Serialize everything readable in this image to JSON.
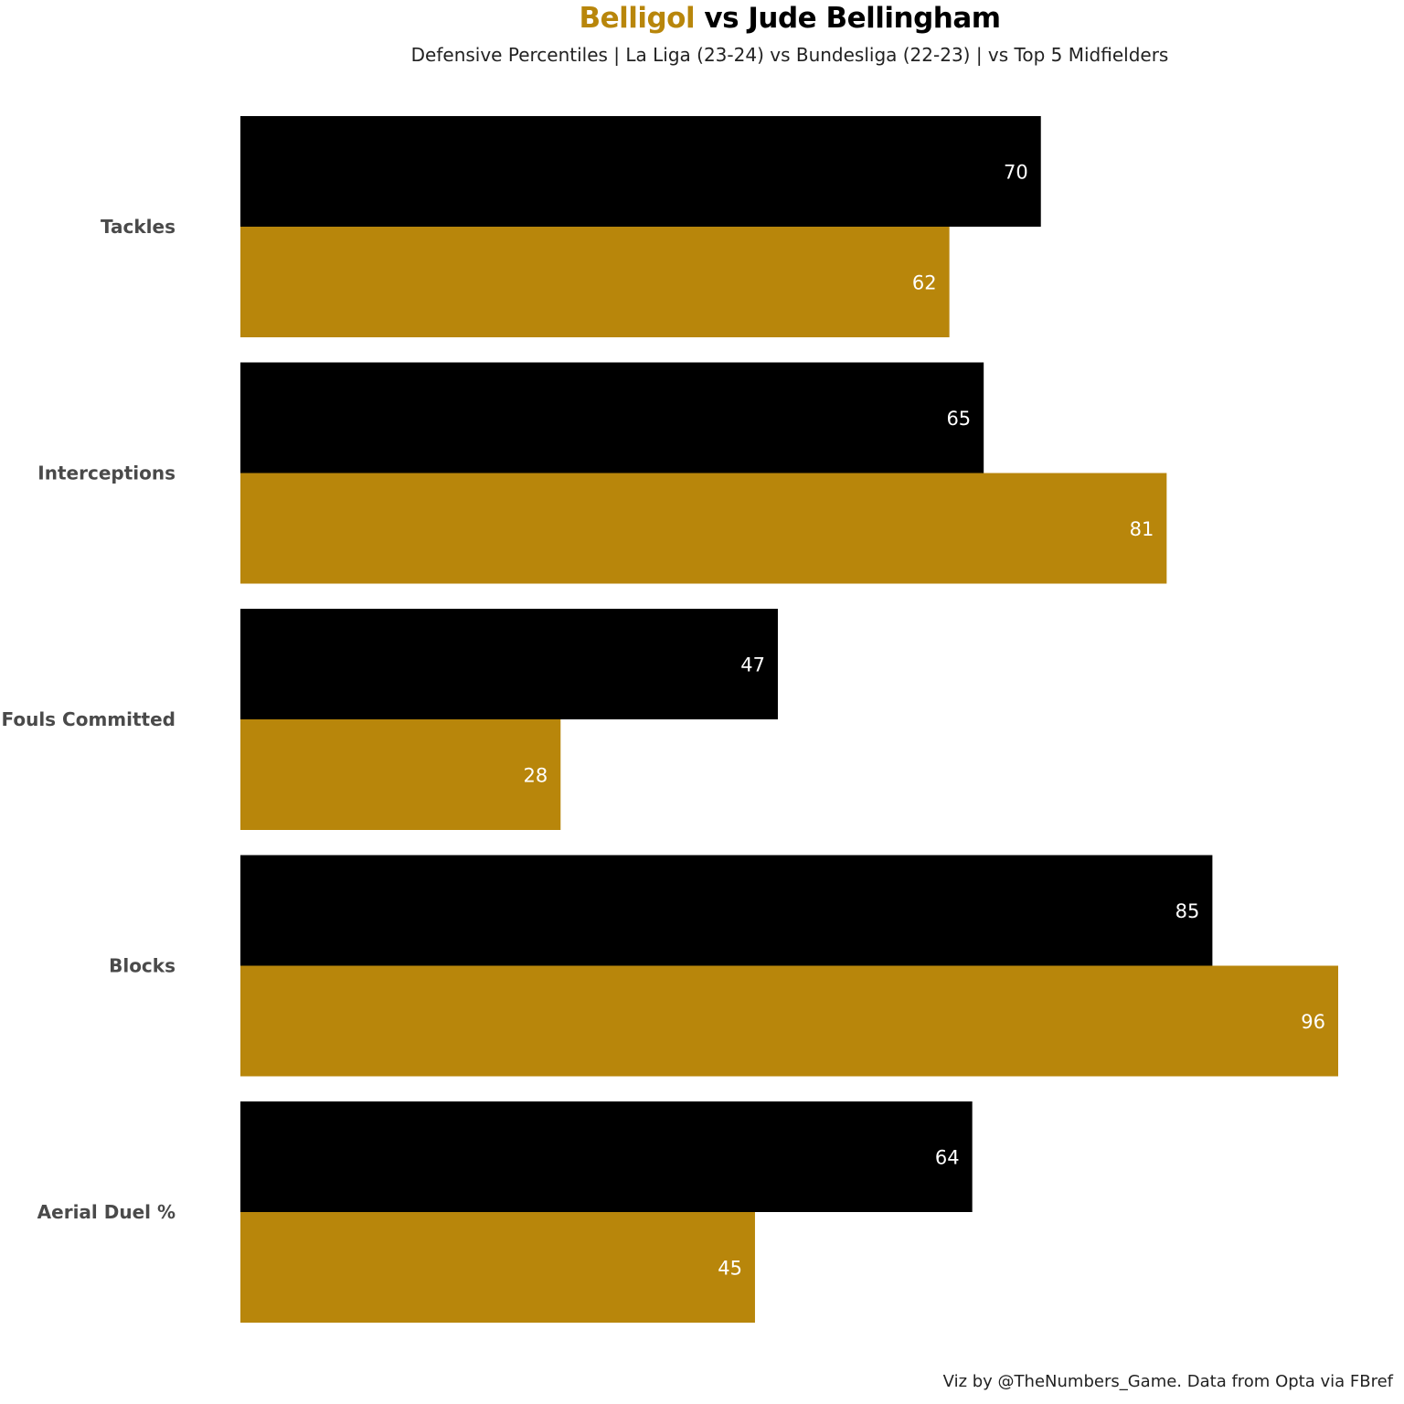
{
  "title": {
    "highlight": "Belligol",
    "rest": " vs Jude Bellingham"
  },
  "subtitle": "Defensive Percentiles | La Liga (23-24) vs Bundesliga (22-23) | vs Top 5 Midfielders",
  "footer": "Viz by @TheNumbers_Game. Data from Opta via FBref",
  "chart_data": {
    "type": "bar",
    "orientation": "horizontal",
    "title": "Belligol vs Jude Bellingham",
    "subtitle": "Defensive Percentiles | La Liga (23-24) vs Bundesliga (22-23) | vs Top 5 Midfielders",
    "categories": [
      "Tackles",
      "Interceptions",
      "Fouls Committed",
      "Blocks",
      "Aerial Duel %"
    ],
    "series": [
      {
        "name": "Jude Bellingham",
        "color": "#000000",
        "values": [
          70,
          65,
          47,
          85,
          64
        ]
      },
      {
        "name": "Belligol",
        "color": "#b8860b",
        "values": [
          62,
          81,
          28,
          96,
          45
        ]
      }
    ],
    "xlim": [
      0,
      100
    ],
    "grid": false,
    "legend": "none"
  }
}
